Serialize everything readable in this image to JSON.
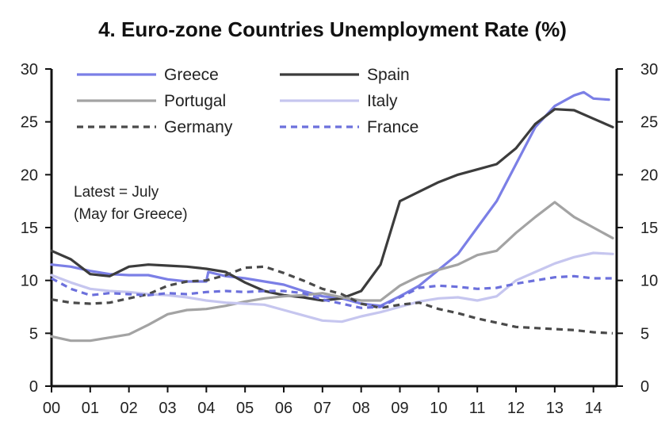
{
  "chart_data": {
    "type": "line",
    "title": "4. Euro-zone Countries Unemployment Rate (%)",
    "xlabel": "",
    "ylabel": "",
    "xlim": [
      2000,
      2014.6
    ],
    "ylim": [
      0,
      30
    ],
    "x_ticks": [
      {
        "value": 2000,
        "label": "00"
      },
      {
        "value": 2001,
        "label": "01"
      },
      {
        "value": 2002,
        "label": "02"
      },
      {
        "value": 2003,
        "label": "03"
      },
      {
        "value": 2004,
        "label": "04"
      },
      {
        "value": 2005,
        "label": "05"
      },
      {
        "value": 2006,
        "label": "06"
      },
      {
        "value": 2007,
        "label": "07"
      },
      {
        "value": 2008,
        "label": "08"
      },
      {
        "value": 2009,
        "label": "09"
      },
      {
        "value": 2010,
        "label": "10"
      },
      {
        "value": 2011,
        "label": "11"
      },
      {
        "value": 2012,
        "label": "12"
      },
      {
        "value": 2013,
        "label": "13"
      },
      {
        "value": 2014,
        "label": "14"
      }
    ],
    "y_ticks": [
      0,
      5,
      10,
      15,
      20,
      25,
      30
    ],
    "grid": false,
    "legend_position": "top",
    "annotation": [
      "Latest = July",
      "(May for Greece)"
    ],
    "series": [
      {
        "name": "Greece",
        "color": "#7b7fe6",
        "dash": "solid",
        "points": [
          [
            2000.0,
            11.5
          ],
          [
            2000.5,
            11.3
          ],
          [
            2001.0,
            10.9
          ],
          [
            2001.5,
            10.6
          ],
          [
            2002.0,
            10.5
          ],
          [
            2002.5,
            10.5
          ],
          [
            2003.0,
            10.1
          ],
          [
            2003.5,
            9.9
          ],
          [
            2004.0,
            9.9
          ],
          [
            2004.05,
            10.8
          ],
          [
            2004.5,
            10.4
          ],
          [
            2005.0,
            10.2
          ],
          [
            2005.5,
            9.9
          ],
          [
            2006.0,
            9.6
          ],
          [
            2006.5,
            9.0
          ],
          [
            2007.0,
            8.5
          ],
          [
            2007.5,
            8.3
          ],
          [
            2008.0,
            7.8
          ],
          [
            2008.5,
            7.6
          ],
          [
            2009.0,
            8.5
          ],
          [
            2009.5,
            9.5
          ],
          [
            2010.0,
            11.0
          ],
          [
            2010.5,
            12.5
          ],
          [
            2011.0,
            15.0
          ],
          [
            2011.5,
            17.5
          ],
          [
            2012.0,
            21.0
          ],
          [
            2012.5,
            24.5
          ],
          [
            2013.0,
            26.5
          ],
          [
            2013.5,
            27.5
          ],
          [
            2013.75,
            27.8
          ],
          [
            2014.0,
            27.2
          ],
          [
            2014.4,
            27.1
          ]
        ]
      },
      {
        "name": "Spain",
        "color": "#3c3c3c",
        "dash": "solid",
        "points": [
          [
            2000.0,
            12.8
          ],
          [
            2000.5,
            12.0
          ],
          [
            2001.0,
            10.6
          ],
          [
            2001.5,
            10.4
          ],
          [
            2002.0,
            11.3
          ],
          [
            2002.5,
            11.5
          ],
          [
            2003.0,
            11.4
          ],
          [
            2003.5,
            11.3
          ],
          [
            2004.0,
            11.1
          ],
          [
            2004.5,
            10.8
          ],
          [
            2005.0,
            9.8
          ],
          [
            2005.5,
            9.0
          ],
          [
            2006.0,
            8.6
          ],
          [
            2006.5,
            8.4
          ],
          [
            2007.0,
            8.1
          ],
          [
            2007.5,
            8.3
          ],
          [
            2008.0,
            9.0
          ],
          [
            2008.5,
            11.5
          ],
          [
            2009.0,
            17.5
          ],
          [
            2009.5,
            18.4
          ],
          [
            2010.0,
            19.3
          ],
          [
            2010.5,
            20.0
          ],
          [
            2011.0,
            20.5
          ],
          [
            2011.5,
            21.0
          ],
          [
            2012.0,
            22.5
          ],
          [
            2012.5,
            24.8
          ],
          [
            2013.0,
            26.2
          ],
          [
            2013.5,
            26.1
          ],
          [
            2014.0,
            25.3
          ],
          [
            2014.5,
            24.5
          ]
        ]
      },
      {
        "name": "Portugal",
        "color": "#a3a3a3",
        "dash": "solid",
        "points": [
          [
            2000.0,
            4.7
          ],
          [
            2000.5,
            4.3
          ],
          [
            2001.0,
            4.3
          ],
          [
            2001.5,
            4.6
          ],
          [
            2002.0,
            4.9
          ],
          [
            2002.5,
            5.8
          ],
          [
            2003.0,
            6.8
          ],
          [
            2003.5,
            7.2
          ],
          [
            2004.0,
            7.3
          ],
          [
            2004.5,
            7.6
          ],
          [
            2005.0,
            8.0
          ],
          [
            2005.5,
            8.3
          ],
          [
            2006.0,
            8.5
          ],
          [
            2006.5,
            8.6
          ],
          [
            2007.0,
            8.8
          ],
          [
            2007.5,
            8.4
          ],
          [
            2008.0,
            8.1
          ],
          [
            2008.5,
            8.1
          ],
          [
            2009.0,
            9.5
          ],
          [
            2009.5,
            10.4
          ],
          [
            2010.0,
            11.0
          ],
          [
            2010.5,
            11.5
          ],
          [
            2011.0,
            12.4
          ],
          [
            2011.5,
            12.8
          ],
          [
            2012.0,
            14.5
          ],
          [
            2012.5,
            16.0
          ],
          [
            2013.0,
            17.4
          ],
          [
            2013.5,
            16.0
          ],
          [
            2014.0,
            15.0
          ],
          [
            2014.5,
            14.0
          ]
        ]
      },
      {
        "name": "Italy",
        "color": "#c6c6ef",
        "dash": "solid",
        "points": [
          [
            2000.0,
            10.5
          ],
          [
            2000.5,
            9.8
          ],
          [
            2001.0,
            9.2
          ],
          [
            2001.5,
            9.0
          ],
          [
            2002.0,
            8.9
          ],
          [
            2002.5,
            8.7
          ],
          [
            2003.0,
            8.6
          ],
          [
            2003.5,
            8.4
          ],
          [
            2004.0,
            8.1
          ],
          [
            2004.5,
            7.9
          ],
          [
            2005.0,
            7.8
          ],
          [
            2005.5,
            7.7
          ],
          [
            2006.0,
            7.2
          ],
          [
            2006.5,
            6.7
          ],
          [
            2007.0,
            6.2
          ],
          [
            2007.5,
            6.1
          ],
          [
            2008.0,
            6.6
          ],
          [
            2008.5,
            7.0
          ],
          [
            2009.0,
            7.5
          ],
          [
            2009.5,
            8.0
          ],
          [
            2010.0,
            8.3
          ],
          [
            2010.5,
            8.4
          ],
          [
            2011.0,
            8.1
          ],
          [
            2011.5,
            8.5
          ],
          [
            2012.0,
            10.0
          ],
          [
            2012.5,
            10.8
          ],
          [
            2013.0,
            11.6
          ],
          [
            2013.5,
            12.2
          ],
          [
            2014.0,
            12.6
          ],
          [
            2014.5,
            12.5
          ]
        ]
      },
      {
        "name": "Germany",
        "color": "#4a4a4a",
        "dash": "dashed",
        "points": [
          [
            2000.0,
            8.2
          ],
          [
            2000.5,
            7.9
          ],
          [
            2001.0,
            7.8
          ],
          [
            2001.5,
            7.9
          ],
          [
            2002.0,
            8.3
          ],
          [
            2002.5,
            8.7
          ],
          [
            2003.0,
            9.5
          ],
          [
            2003.5,
            9.9
          ],
          [
            2004.0,
            10.0
          ],
          [
            2004.5,
            10.5
          ],
          [
            2005.0,
            11.2
          ],
          [
            2005.5,
            11.3
          ],
          [
            2006.0,
            10.7
          ],
          [
            2006.5,
            10.0
          ],
          [
            2007.0,
            9.2
          ],
          [
            2007.5,
            8.7
          ],
          [
            2008.0,
            7.8
          ],
          [
            2008.5,
            7.4
          ],
          [
            2009.0,
            7.7
          ],
          [
            2009.5,
            7.9
          ],
          [
            2010.0,
            7.3
          ],
          [
            2010.5,
            6.9
          ],
          [
            2011.0,
            6.4
          ],
          [
            2011.5,
            6.0
          ],
          [
            2012.0,
            5.6
          ],
          [
            2012.5,
            5.5
          ],
          [
            2013.0,
            5.4
          ],
          [
            2013.5,
            5.3
          ],
          [
            2014.0,
            5.1
          ],
          [
            2014.5,
            5.0
          ]
        ]
      },
      {
        "name": "France",
        "color": "#6c70dc",
        "dash": "dashed",
        "points": [
          [
            2000.0,
            10.2
          ],
          [
            2000.5,
            9.2
          ],
          [
            2001.0,
            8.6
          ],
          [
            2001.5,
            8.8
          ],
          [
            2002.0,
            8.7
          ],
          [
            2002.5,
            8.6
          ],
          [
            2003.0,
            8.8
          ],
          [
            2003.5,
            8.7
          ],
          [
            2004.0,
            8.9
          ],
          [
            2004.5,
            9.0
          ],
          [
            2005.0,
            8.9
          ],
          [
            2005.5,
            9.0
          ],
          [
            2006.0,
            9.0
          ],
          [
            2006.5,
            8.8
          ],
          [
            2007.0,
            8.2
          ],
          [
            2007.5,
            7.8
          ],
          [
            2008.0,
            7.4
          ],
          [
            2008.5,
            7.5
          ],
          [
            2009.0,
            8.4
          ],
          [
            2009.5,
            9.3
          ],
          [
            2010.0,
            9.5
          ],
          [
            2010.5,
            9.4
          ],
          [
            2011.0,
            9.2
          ],
          [
            2011.5,
            9.3
          ],
          [
            2012.0,
            9.7
          ],
          [
            2012.5,
            10.0
          ],
          [
            2013.0,
            10.3
          ],
          [
            2013.5,
            10.4
          ],
          [
            2014.0,
            10.2
          ],
          [
            2014.5,
            10.2
          ]
        ]
      }
    ]
  }
}
